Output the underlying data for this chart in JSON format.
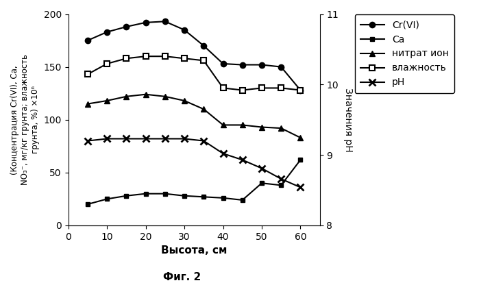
{
  "x": [
    5,
    10,
    15,
    20,
    25,
    30,
    35,
    40,
    45,
    50,
    55,
    60
  ],
  "cr_vi": [
    175,
    183,
    188,
    192,
    193,
    185,
    170,
    153,
    152,
    152,
    150,
    128
  ],
  "ca": [
    20,
    25,
    28,
    30,
    30,
    28,
    27,
    26,
    24,
    40,
    38,
    62
  ],
  "nitrate": [
    115,
    118,
    122,
    124,
    122,
    118,
    110,
    95,
    95,
    93,
    92,
    83
  ],
  "moisture": [
    143,
    153,
    158,
    160,
    160,
    158,
    156,
    130,
    128,
    130,
    130,
    128
  ],
  "pH_left_scale": [
    80,
    82,
    82,
    82,
    82,
    82,
    80,
    68,
    62,
    54,
    44,
    36
  ],
  "left_ylabel_line1": "(Концентрация Cr(VI), Ca,",
  "left_ylabel_line2": "NO₃⁻, мг/кг грунта; влажность",
  "left_ylabel_line3": "грунта, %) ×10ⁿ",
  "right_ylabel": "Значения pH",
  "xlabel": "Высота, см",
  "title_bottom": "Фиг. 2",
  "ylim_left": [
    0,
    200
  ],
  "ylim_right": [
    8,
    11
  ],
  "xlim": [
    0,
    65
  ],
  "xticks": [
    0,
    10,
    20,
    30,
    40,
    50,
    60
  ],
  "yticks_left": [
    0,
    50,
    100,
    150,
    200
  ],
  "yticks_right": [
    8,
    9,
    10,
    11
  ],
  "legend_labels": [
    "Cr(VI)",
    "Ca",
    "нитрат ион",
    "влажность",
    "pH"
  ],
  "background_color": "#ffffff"
}
